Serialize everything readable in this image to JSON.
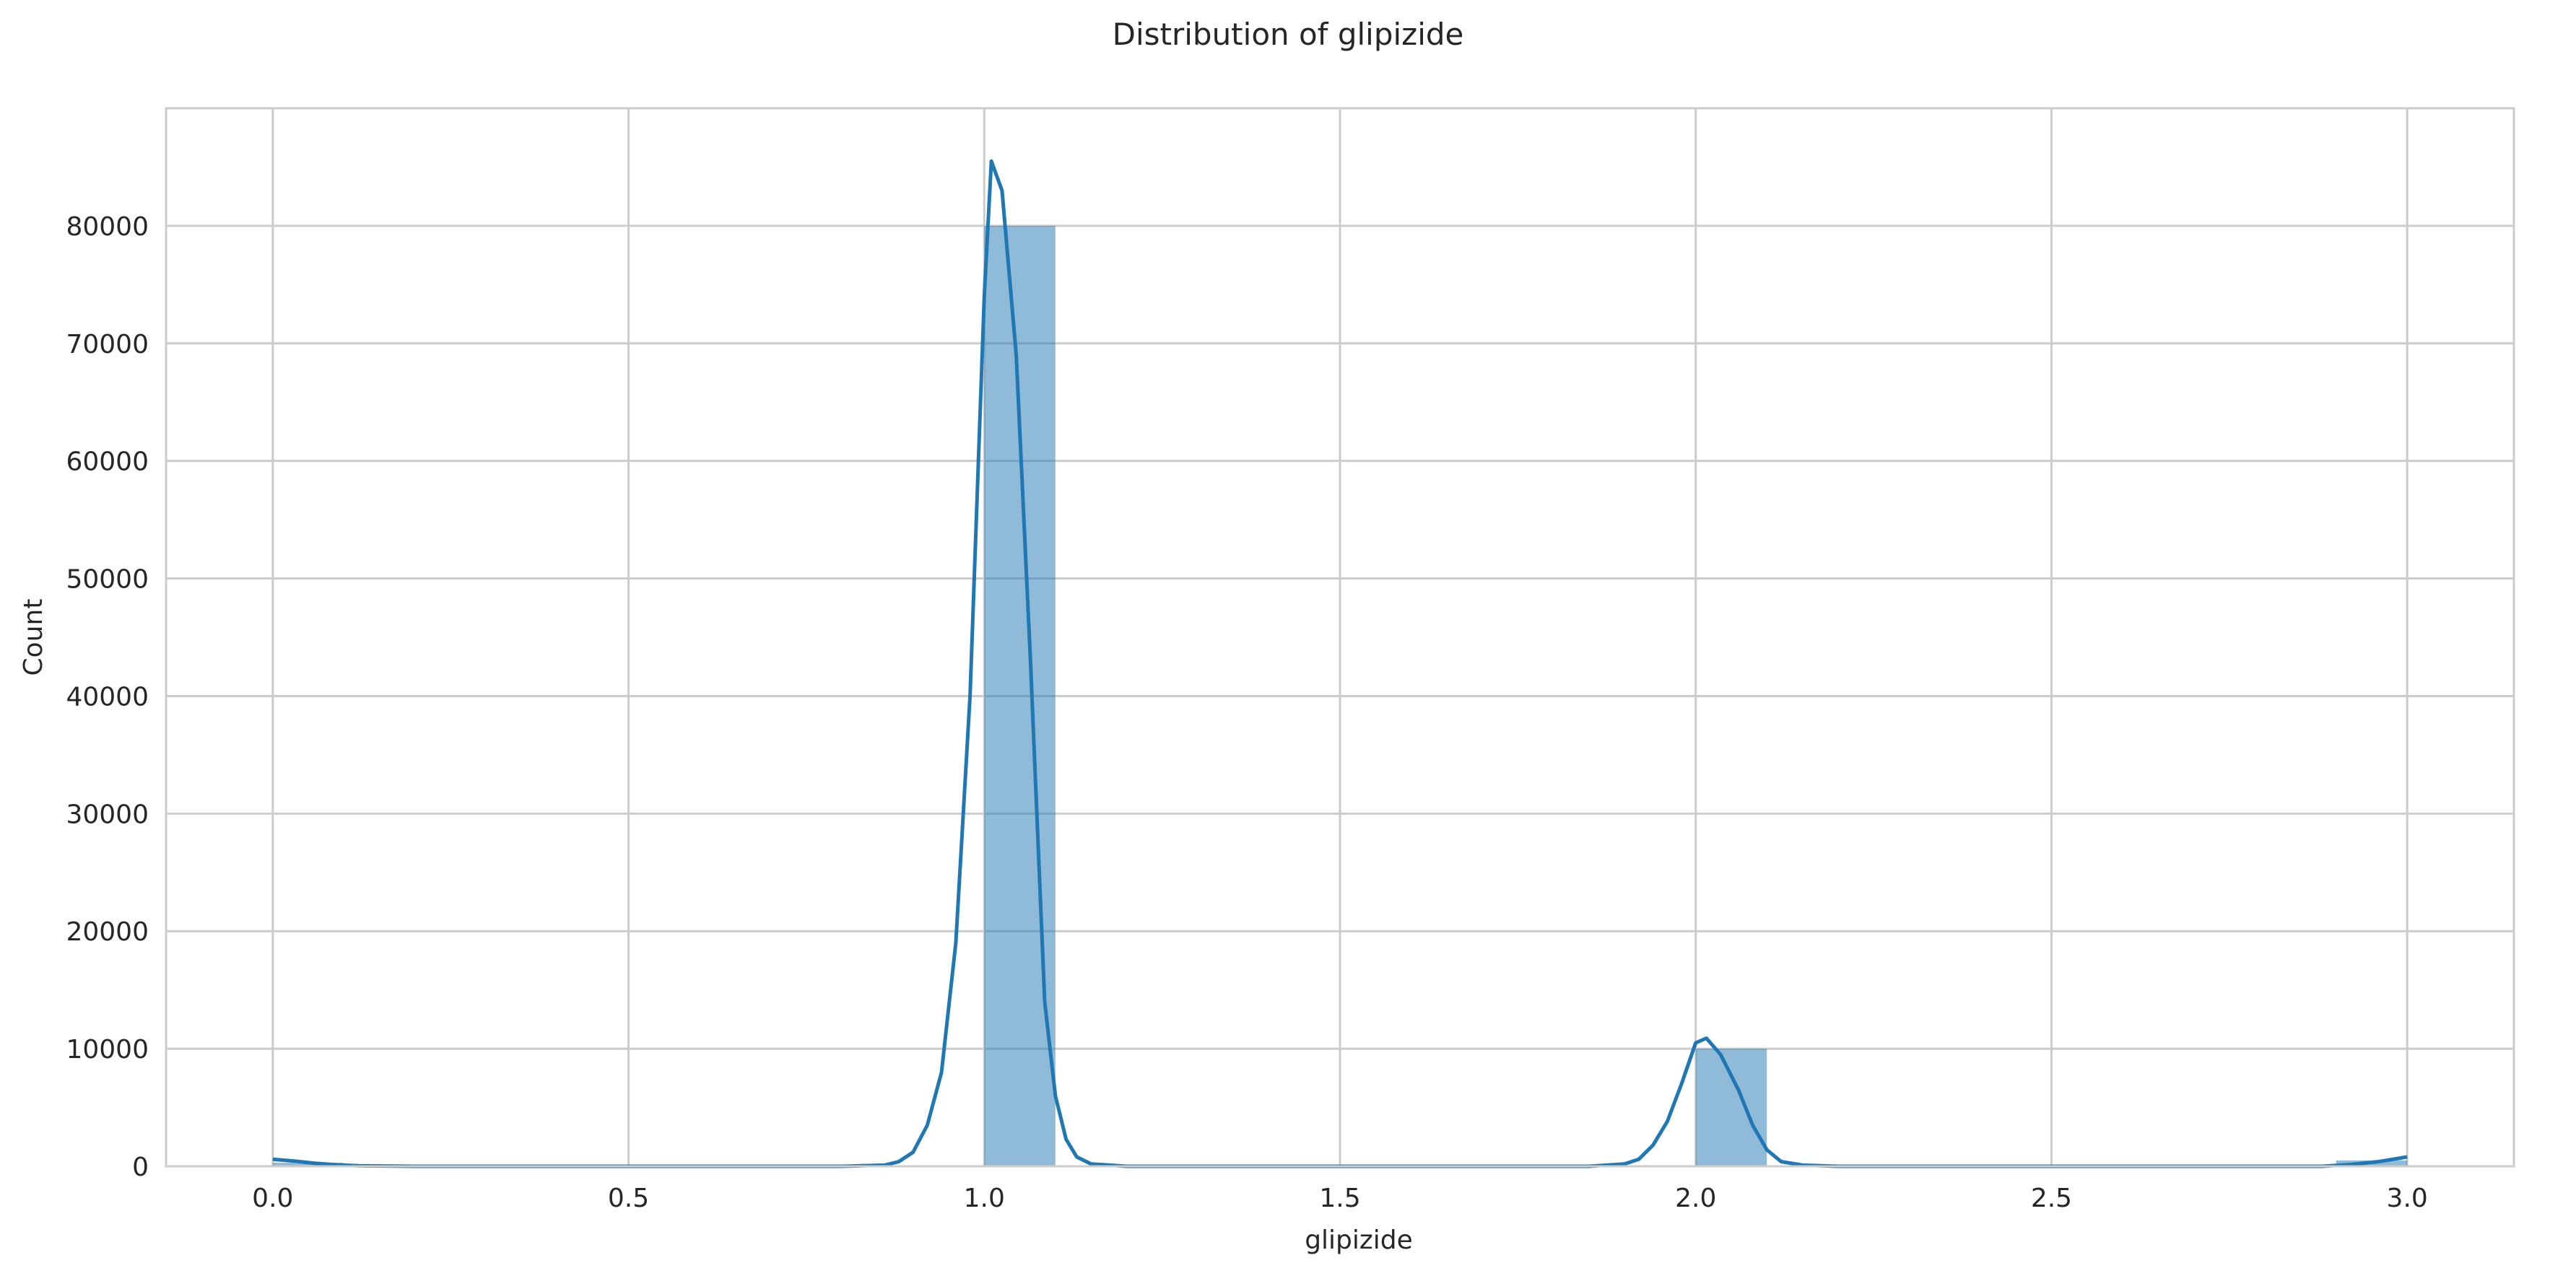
{
  "chart_data": {
    "type": "bar",
    "title": "Distribution of glipizide",
    "xlabel": "glipizide",
    "ylabel": "Count",
    "xlim": [
      -0.15,
      3.15
    ],
    "ylim": [
      0,
      90000
    ],
    "xticks": [
      0.0,
      0.5,
      1.0,
      1.5,
      2.0,
      2.5,
      3.0
    ],
    "xtick_labels": [
      "0.0",
      "0.5",
      "1.0",
      "1.5",
      "2.0",
      "2.5",
      "3.0"
    ],
    "yticks": [
      0,
      10000,
      20000,
      30000,
      40000,
      50000,
      60000,
      70000,
      80000
    ],
    "ytick_labels": [
      "0",
      "10000",
      "20000",
      "30000",
      "40000",
      "50000",
      "60000",
      "70000",
      "80000"
    ],
    "grid": true,
    "bars": [
      {
        "x0": 0.0,
        "x1": 0.1,
        "count": 300
      },
      {
        "x0": 1.0,
        "x1": 1.1,
        "count": 80000
      },
      {
        "x0": 2.0,
        "x1": 2.1,
        "count": 10000
      },
      {
        "x0": 2.9,
        "x1": 3.0,
        "count": 500
      }
    ],
    "kde": [
      [
        0.0,
        600
      ],
      [
        0.03,
        450
      ],
      [
        0.06,
        250
      ],
      [
        0.09,
        120
      ],
      [
        0.12,
        40
      ],
      [
        0.2,
        0
      ],
      [
        0.8,
        0
      ],
      [
        0.86,
        100
      ],
      [
        0.88,
        400
      ],
      [
        0.9,
        1200
      ],
      [
        0.92,
        3500
      ],
      [
        0.94,
        8000
      ],
      [
        0.96,
        19000
      ],
      [
        0.98,
        40000
      ],
      [
        1.0,
        74000
      ],
      [
        1.01,
        85500
      ],
      [
        1.025,
        83000
      ],
      [
        1.045,
        69000
      ],
      [
        1.065,
        43000
      ],
      [
        1.085,
        14000
      ],
      [
        1.1,
        6000
      ],
      [
        1.115,
        2300
      ],
      [
        1.13,
        800
      ],
      [
        1.15,
        200
      ],
      [
        1.2,
        0
      ],
      [
        1.85,
        0
      ],
      [
        1.9,
        200
      ],
      [
        1.92,
        600
      ],
      [
        1.94,
        1800
      ],
      [
        1.96,
        3800
      ],
      [
        1.98,
        7000
      ],
      [
        2.0,
        10500
      ],
      [
        2.015,
        10900
      ],
      [
        2.035,
        9500
      ],
      [
        2.06,
        6500
      ],
      [
        2.08,
        3500
      ],
      [
        2.1,
        1400
      ],
      [
        2.12,
        400
      ],
      [
        2.15,
        100
      ],
      [
        2.2,
        0
      ],
      [
        2.88,
        0
      ],
      [
        2.92,
        150
      ],
      [
        2.96,
        400
      ],
      [
        3.0,
        800
      ]
    ],
    "colors": {
      "bar": "#1f77b4",
      "bar_opacity": 0.5,
      "kde": "#1f77b4",
      "grid": "#cccccc",
      "spine": "#cccccc"
    }
  }
}
